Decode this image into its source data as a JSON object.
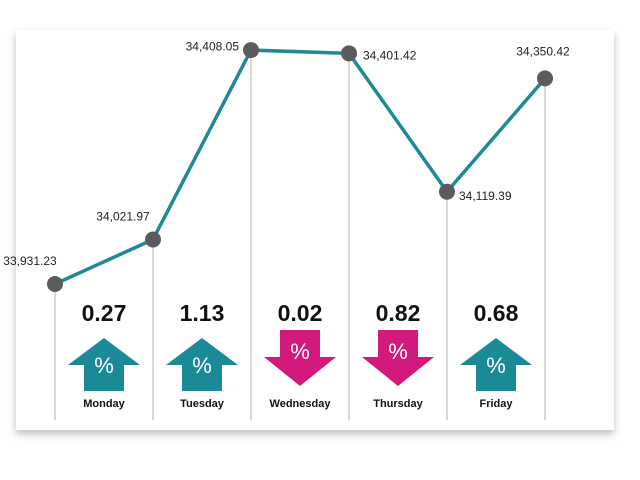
{
  "chart_data": {
    "type": "line",
    "values": [
      33931.23,
      34021.97,
      34408.05,
      34401.42,
      34119.39,
      34350.42
    ],
    "value_labels": [
      "33,931.23",
      "34,021.97",
      "34,408.05",
      "34,401.42",
      "34,119.39",
      "34,350.42"
    ],
    "color": "#1f8a94",
    "point_color": "#5b5b5d",
    "ylim": [
      33654,
      34449
    ],
    "days": {
      "categories": [
        "Monday",
        "Tuesday",
        "Wednesday",
        "Thursday",
        "Friday"
      ],
      "values": [
        0.27,
        1.13,
        0.02,
        0.82,
        0.68
      ],
      "direction": [
        "up",
        "up",
        "down",
        "down",
        "up"
      ],
      "up_color": "#1a8a96",
      "down_color": "#d4197c",
      "symbol": "%"
    }
  }
}
